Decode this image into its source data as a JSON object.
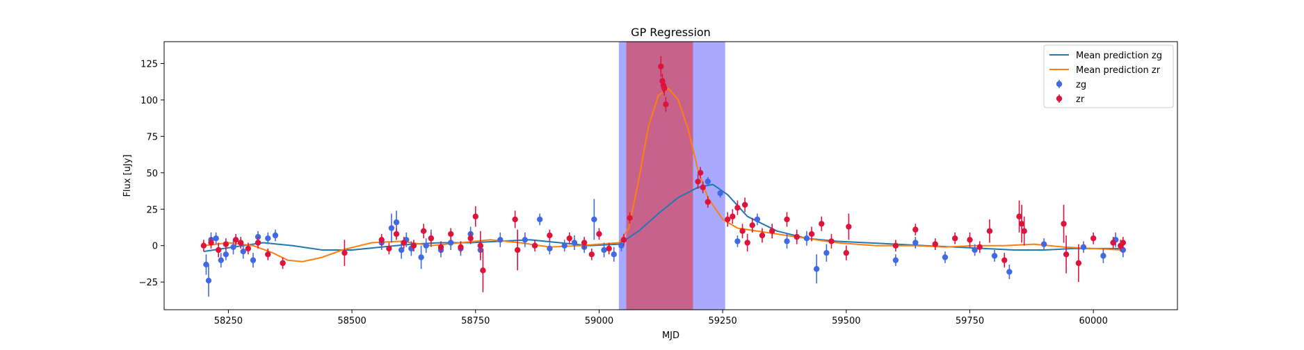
{
  "chart_data": {
    "type": "scatter",
    "title": "GP Regression",
    "xlabel": "MJD",
    "ylabel": "Flux [uJy]",
    "xlim": [
      58120,
      60170
    ],
    "ylim": [
      -44,
      140
    ],
    "xticks": [
      58250,
      58500,
      58750,
      59000,
      59250,
      59500,
      59750,
      60000
    ],
    "yticks": [
      -25,
      0,
      25,
      50,
      75,
      100,
      125
    ],
    "grid": false,
    "legend_position": "top-right",
    "colors": {
      "zg_points": "#4169e1",
      "zr_points": "#dc143c",
      "zg_line": "#1f77b4",
      "zr_line": "#ff7f0e",
      "zg_band": "#8080ff",
      "zr_band": "#d0506a"
    },
    "bands": [
      {
        "band": "zg",
        "x0": 59040,
        "x1": 59255
      },
      {
        "band": "zr",
        "x0": 59055,
        "x1": 59190
      }
    ],
    "legend": [
      {
        "label": "Mean prediction zg",
        "kind": "line",
        "color": "#1f77b4"
      },
      {
        "label": "Mean prediction zr",
        "kind": "line",
        "color": "#ff7f0e"
      },
      {
        "label": "zg",
        "kind": "point",
        "color": "#4169e1"
      },
      {
        "label": "zr",
        "kind": "point",
        "color": "#dc143c"
      }
    ],
    "series": [
      {
        "name": "Mean prediction zg",
        "kind": "line",
        "x": [
          58200,
          58260,
          58320,
          58380,
          58440,
          58500,
          58560,
          58620,
          58680,
          58740,
          58800,
          58860,
          58920,
          58980,
          59040,
          59080,
          59120,
          59160,
          59200,
          59230,
          59260,
          59300,
          59360,
          59420,
          59480,
          59540,
          59600,
          59660,
          59720,
          59780,
          59840,
          59900,
          59960,
          60060
        ],
        "y": [
          -4,
          -1,
          2,
          0,
          -3,
          -3,
          -1,
          1,
          2,
          2,
          3,
          4,
          2,
          0,
          1,
          10,
          22,
          33,
          40,
          42,
          35,
          20,
          10,
          5,
          3,
          2,
          1,
          0,
          -1,
          -2,
          -3,
          -3,
          -2,
          -2
        ]
      },
      {
        "name": "Mean prediction zr",
        "kind": "line",
        "x": [
          58200,
          58250,
          58300,
          58340,
          58370,
          58400,
          58440,
          58480,
          58540,
          58600,
          58660,
          58720,
          58780,
          58840,
          58900,
          58960,
          59000,
          59040,
          59060,
          59080,
          59100,
          59120,
          59140,
          59160,
          59180,
          59200,
          59220,
          59250,
          59280,
          59320,
          59400,
          59480,
          59560,
          59640,
          59700,
          59760,
          59820,
          59880,
          59940,
          60000,
          60060
        ],
        "y": [
          0,
          2,
          0,
          -5,
          -10,
          -11,
          -8,
          -3,
          2,
          3,
          0,
          2,
          4,
          2,
          -1,
          0,
          1,
          2,
          12,
          45,
          82,
          103,
          108,
          100,
          80,
          52,
          33,
          18,
          12,
          10,
          6,
          2,
          0,
          0,
          -1,
          0,
          0,
          1,
          -1,
          -2,
          -3
        ]
      },
      {
        "name": "zg",
        "kind": "errorbar",
        "x": [
          58205,
          58210,
          58215,
          58225,
          58235,
          58245,
          58260,
          58280,
          58300,
          58310,
          58330,
          58345,
          58560,
          58580,
          58590,
          58600,
          58610,
          58620,
          58640,
          58650,
          58660,
          58680,
          58700,
          58720,
          58740,
          58760,
          58800,
          58850,
          58880,
          58900,
          58930,
          58950,
          58970,
          58990,
          59010,
          59030,
          59045,
          59220,
          59245,
          59280,
          59320,
          59380,
          59420,
          59440,
          59460,
          59600,
          59640,
          59700,
          59760,
          59800,
          59830,
          59900,
          59980,
          60020,
          60045,
          60060
        ],
        "y": [
          -13,
          -24,
          4,
          5,
          -10,
          -6,
          -1,
          -4,
          -10,
          6,
          5,
          7,
          2,
          12,
          16,
          -3,
          4,
          -2,
          -8,
          0,
          5,
          -3,
          2,
          -2,
          8,
          -3,
          4,
          4,
          18,
          -2,
          0,
          2,
          -1,
          18,
          -3,
          -6,
          0,
          44,
          36,
          3,
          18,
          3,
          5,
          -16,
          -5,
          -10,
          2,
          -8,
          -3,
          -7,
          -18,
          1,
          -1,
          -7,
          4,
          -3
        ],
        "err": [
          7,
          11,
          5,
          4,
          5,
          4,
          5,
          5,
          5,
          4,
          4,
          4,
          5,
          10,
          8,
          6,
          5,
          5,
          8,
          5,
          6,
          5,
          5,
          5,
          5,
          5,
          5,
          5,
          4,
          4,
          4,
          5,
          4,
          14,
          5,
          5,
          4,
          3,
          3,
          4,
          4,
          5,
          5,
          10,
          6,
          4,
          4,
          4,
          4,
          4,
          5,
          4,
          4,
          5,
          5,
          5
        ]
      },
      {
        "name": "zr",
        "kind": "errorbar",
        "x": [
          58200,
          58215,
          58230,
          58245,
          58265,
          58275,
          58290,
          58310,
          58330,
          58360,
          58485,
          58560,
          58575,
          58590,
          58605,
          58625,
          58645,
          58660,
          58680,
          58700,
          58720,
          58740,
          58750,
          58760,
          58765,
          58830,
          58835,
          58870,
          58900,
          58940,
          58970,
          58985,
          59000,
          59020,
          59050,
          59062,
          59125,
          59128,
          59130,
          59132,
          59135,
          59200,
          59205,
          59210,
          59220,
          59260,
          59270,
          59280,
          59290,
          59295,
          59300,
          59310,
          59330,
          59350,
          59380,
          59400,
          59430,
          59450,
          59470,
          59500,
          59505,
          59600,
          59640,
          59680,
          59720,
          59750,
          59770,
          59790,
          59820,
          59850,
          59855,
          59860,
          59940,
          59945,
          59970,
          60000,
          60040,
          60055,
          60060
        ],
        "y": [
          0,
          2,
          -3,
          1,
          4,
          2,
          -2,
          2,
          -6,
          -12,
          -5,
          4,
          -2,
          8,
          2,
          0,
          10,
          5,
          -1,
          8,
          -1,
          5,
          20,
          0,
          -17,
          18,
          -3,
          0,
          7,
          5,
          2,
          -6,
          8,
          -2,
          4,
          19,
          123,
          113,
          110,
          108,
          97,
          44,
          50,
          40,
          30,
          18,
          20,
          26,
          10,
          28,
          2,
          14,
          7,
          10,
          18,
          6,
          8,
          15,
          3,
          -5,
          13,
          0,
          11,
          1,
          5,
          4,
          -1,
          10,
          -10,
          20,
          15,
          10,
          15,
          -6,
          -12,
          5,
          2,
          0,
          2
        ],
        "err": [
          4,
          4,
          5,
          4,
          4,
          4,
          4,
          4,
          4,
          4,
          9,
          4,
          4,
          4,
          4,
          4,
          5,
          4,
          4,
          4,
          4,
          4,
          7,
          10,
          15,
          6,
          14,
          4,
          4,
          4,
          4,
          4,
          4,
          4,
          4,
          4,
          7,
          5,
          5,
          5,
          5,
          5,
          4,
          4,
          4,
          5,
          5,
          5,
          5,
          5,
          6,
          5,
          5,
          5,
          5,
          5,
          5,
          5,
          5,
          5,
          9,
          4,
          4,
          4,
          4,
          5,
          4,
          8,
          5,
          11,
          13,
          10,
          13,
          13,
          13,
          4,
          4,
          4,
          4
        ]
      }
    ]
  }
}
